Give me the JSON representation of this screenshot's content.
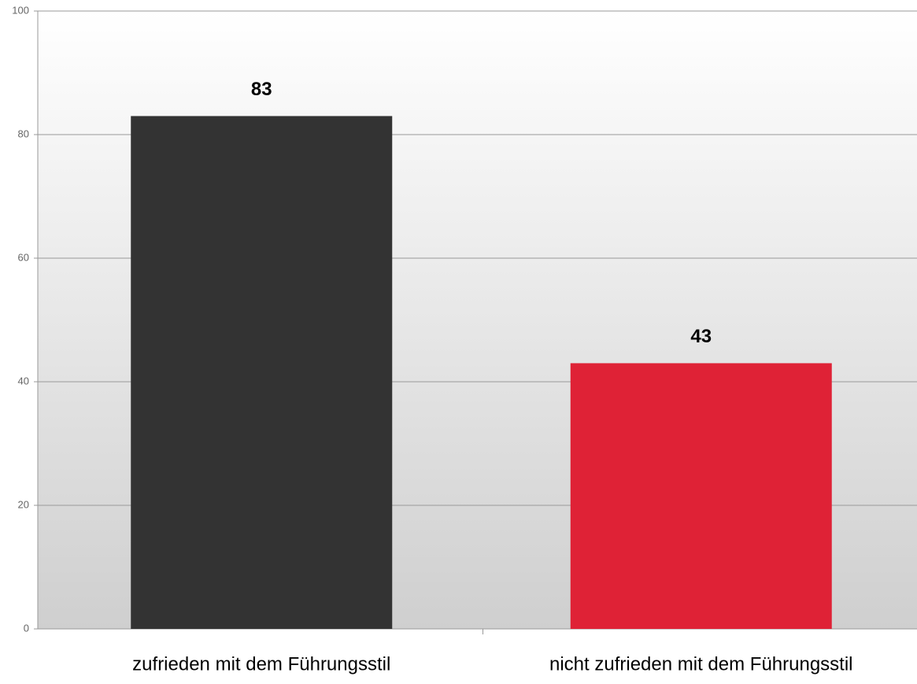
{
  "chart_data": {
    "type": "bar",
    "categories": [
      "zufrieden mit dem Führungsstil",
      "nicht zufrieden mit dem Führungsstil"
    ],
    "values": [
      83,
      43
    ],
    "colors": [
      "#333333",
      "#df2236"
    ],
    "ylim": [
      0,
      100
    ],
    "yticks": [
      0,
      20,
      40,
      60,
      80,
      100
    ],
    "grid": true
  }
}
